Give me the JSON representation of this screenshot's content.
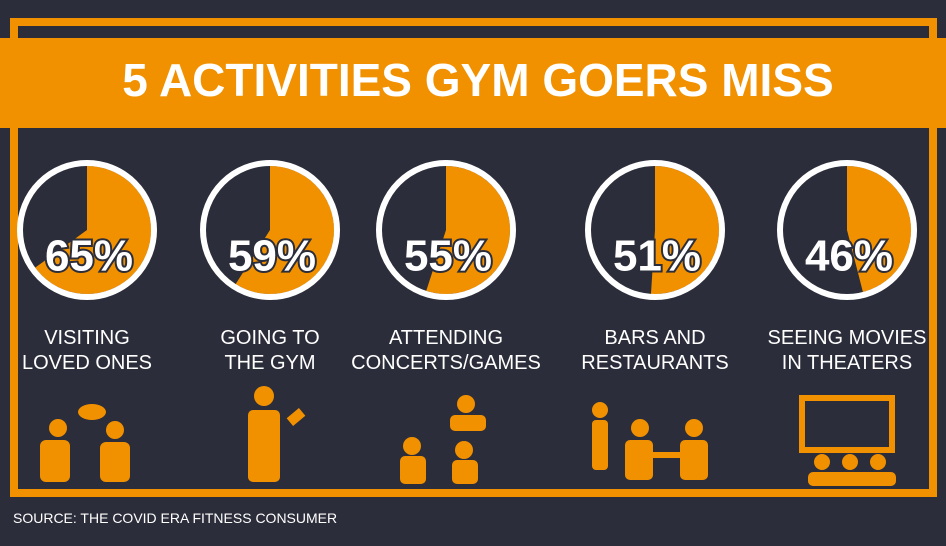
{
  "chart_data": {
    "type": "pie",
    "title": "5 ACTIVITIES GYM GOERS MISS",
    "categories": [
      "VISITING\nLOVED ONES",
      "GOING TO\nTHE GYM",
      "ATTENDING\nCONCERTS/GAMES",
      "BARS AND\nRESTAURANTS",
      "SEEING MOVIES\nIN THEATERS"
    ],
    "values": [
      65,
      59,
      55,
      51,
      46
    ],
    "value_labels": [
      "65%",
      "59%",
      "55%",
      "51%",
      "46%"
    ],
    "color": "#f29100",
    "source": "SOURCE: THE COVID ERA FITNESS CONSUMER"
  }
}
